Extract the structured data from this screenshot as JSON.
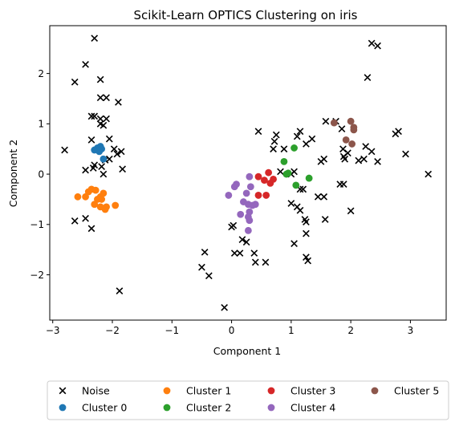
{
  "chart_data": {
    "type": "scatter",
    "title": "Scikit-Learn OPTICS Clustering on iris",
    "xlabel": "Component 1",
    "ylabel": "Component 2",
    "xlim": [
      -3.05,
      3.6
    ],
    "ylim": [
      -2.9,
      2.95
    ],
    "xticks": [
      -3,
      -2,
      -1,
      0,
      1,
      2,
      3
    ],
    "yticks": [
      -2,
      -1,
      0,
      1,
      2
    ],
    "grid": false,
    "legend_position": "below",
    "series": [
      {
        "name": "Noise",
        "marker": "x",
        "color": "#000000",
        "points": [
          [
            -2.3,
            2.7
          ],
          [
            -2.45,
            2.18
          ],
          [
            -2.63,
            1.83
          ],
          [
            -2.2,
            1.88
          ],
          [
            -2.2,
            1.52
          ],
          [
            -2.1,
            1.52
          ],
          [
            -1.9,
            1.43
          ],
          [
            -2.35,
            1.15
          ],
          [
            -2.3,
            1.15
          ],
          [
            -2.2,
            1.0
          ],
          [
            -2.2,
            1.1
          ],
          [
            -2.1,
            1.1
          ],
          [
            -2.15,
            0.97
          ],
          [
            -2.05,
            0.7
          ],
          [
            -2.35,
            0.68
          ],
          [
            -1.97,
            0.5
          ],
          [
            -1.92,
            0.4
          ],
          [
            -1.85,
            0.45
          ],
          [
            -2.8,
            0.48
          ],
          [
            -2.3,
            0.18
          ],
          [
            -2.45,
            0.08
          ],
          [
            -2.32,
            0.12
          ],
          [
            -2.18,
            0.15
          ],
          [
            -2.05,
            0.3
          ],
          [
            -1.83,
            0.1
          ],
          [
            -2.12,
            0.28
          ],
          [
            -2.15,
            0.0
          ],
          [
            -2.63,
            -0.93
          ],
          [
            -2.45,
            -0.88
          ],
          [
            -2.35,
            -1.08
          ],
          [
            -1.88,
            -2.32
          ],
          [
            0.45,
            0.85
          ],
          [
            0.75,
            0.78
          ],
          [
            1.15,
            0.85
          ],
          [
            1.58,
            1.05
          ],
          [
            1.75,
            1.05
          ],
          [
            0.72,
            0.65
          ],
          [
            0.7,
            0.5
          ],
          [
            0.88,
            0.5
          ],
          [
            1.1,
            0.75
          ],
          [
            1.35,
            0.7
          ],
          [
            1.25,
            0.6
          ],
          [
            1.5,
            0.25
          ],
          [
            1.55,
            0.3
          ],
          [
            0.82,
            0.05
          ],
          [
            1.0,
            0.0
          ],
          [
            1.05,
            0.05
          ],
          [
            1.15,
            -0.3
          ],
          [
            1.2,
            -0.3
          ],
          [
            1.45,
            -0.45
          ],
          [
            1.55,
            -0.45
          ],
          [
            1.82,
            -0.2
          ],
          [
            1.88,
            -0.2
          ],
          [
            2.0,
            -0.73
          ],
          [
            1.0,
            -0.58
          ],
          [
            1.1,
            -0.65
          ],
          [
            1.15,
            -0.72
          ],
          [
            1.23,
            -0.9
          ],
          [
            1.25,
            -0.95
          ],
          [
            1.57,
            -0.9
          ],
          [
            1.25,
            -1.18
          ],
          [
            1.05,
            -1.38
          ],
          [
            1.25,
            -1.65
          ],
          [
            1.28,
            -1.72
          ],
          [
            0.0,
            -1.05
          ],
          [
            0.03,
            -1.02
          ],
          [
            0.18,
            -1.3
          ],
          [
            0.25,
            -1.35
          ],
          [
            0.05,
            -1.57
          ],
          [
            0.14,
            -1.57
          ],
          [
            0.38,
            -1.57
          ],
          [
            0.4,
            -1.75
          ],
          [
            0.57,
            -1.75
          ],
          [
            -0.5,
            -1.85
          ],
          [
            -0.45,
            -1.55
          ],
          [
            -0.38,
            -2.02
          ],
          [
            -0.12,
            -2.65
          ],
          [
            2.28,
            1.92
          ],
          [
            2.35,
            2.6
          ],
          [
            2.45,
            2.55
          ],
          [
            2.75,
            0.8
          ],
          [
            2.8,
            0.85
          ],
          [
            2.92,
            0.4
          ],
          [
            3.3,
            0.0
          ],
          [
            1.85,
            0.9
          ],
          [
            1.87,
            0.5
          ],
          [
            1.9,
            0.3
          ],
          [
            1.95,
            0.42
          ],
          [
            1.88,
            0.35
          ],
          [
            2.25,
            0.55
          ],
          [
            2.35,
            0.45
          ],
          [
            2.45,
            0.25
          ],
          [
            2.13,
            0.27
          ],
          [
            2.22,
            0.3
          ]
        ]
      },
      {
        "name": "Cluster 0",
        "marker": "o",
        "color": "#1f77b4",
        "points": [
          [
            -2.3,
            0.48
          ],
          [
            -2.25,
            0.52
          ],
          [
            -2.2,
            0.55
          ],
          [
            -2.18,
            0.5
          ],
          [
            -2.15,
            0.3
          ],
          [
            -2.22,
            0.45
          ]
        ]
      },
      {
        "name": "Cluster 1",
        "marker": "o",
        "color": "#ff7f0e",
        "points": [
          [
            -2.58,
            -0.45
          ],
          [
            -2.4,
            -0.35
          ],
          [
            -2.35,
            -0.3
          ],
          [
            -2.28,
            -0.32
          ],
          [
            -2.25,
            -0.5
          ],
          [
            -2.2,
            -0.45
          ],
          [
            -2.18,
            -0.5
          ],
          [
            -2.15,
            -0.38
          ],
          [
            -2.2,
            -0.65
          ],
          [
            -2.12,
            -0.7
          ],
          [
            -2.1,
            -0.65
          ],
          [
            -2.3,
            -0.6
          ],
          [
            -1.95,
            -0.62
          ],
          [
            -2.45,
            -0.45
          ]
        ]
      },
      {
        "name": "Cluster 2",
        "marker": "o",
        "color": "#2ca02c",
        "points": [
          [
            0.88,
            0.25
          ],
          [
            1.05,
            0.52
          ],
          [
            0.95,
            0.02
          ],
          [
            1.3,
            -0.08
          ],
          [
            1.08,
            -0.22
          ],
          [
            0.92,
            0.0
          ]
        ]
      },
      {
        "name": "Cluster 3",
        "marker": "o",
        "color": "#d62728",
        "points": [
          [
            0.45,
            -0.05
          ],
          [
            0.62,
            0.03
          ],
          [
            0.55,
            -0.12
          ],
          [
            0.65,
            -0.18
          ],
          [
            0.58,
            -0.42
          ],
          [
            0.45,
            -0.42
          ],
          [
            0.7,
            -0.1
          ]
        ]
      },
      {
        "name": "Cluster 4",
        "marker": "o",
        "color": "#9467bd",
        "points": [
          [
            0.3,
            -0.05
          ],
          [
            0.32,
            -0.25
          ],
          [
            0.25,
            -0.38
          ],
          [
            -0.05,
            -0.42
          ],
          [
            0.05,
            -0.25
          ],
          [
            0.08,
            -0.2
          ],
          [
            0.28,
            -0.6
          ],
          [
            0.4,
            -0.6
          ],
          [
            0.2,
            -0.55
          ],
          [
            0.35,
            -0.62
          ],
          [
            0.3,
            -0.75
          ],
          [
            0.15,
            -0.8
          ],
          [
            0.28,
            -0.85
          ],
          [
            0.3,
            -0.92
          ],
          [
            0.28,
            -1.12
          ]
        ]
      },
      {
        "name": "Cluster 5",
        "marker": "o",
        "color": "#8c564b",
        "points": [
          [
            1.72,
            1.02
          ],
          [
            2.0,
            1.05
          ],
          [
            2.05,
            0.93
          ],
          [
            2.05,
            0.88
          ],
          [
            1.92,
            0.68
          ],
          [
            2.02,
            0.6
          ]
        ]
      }
    ]
  }
}
